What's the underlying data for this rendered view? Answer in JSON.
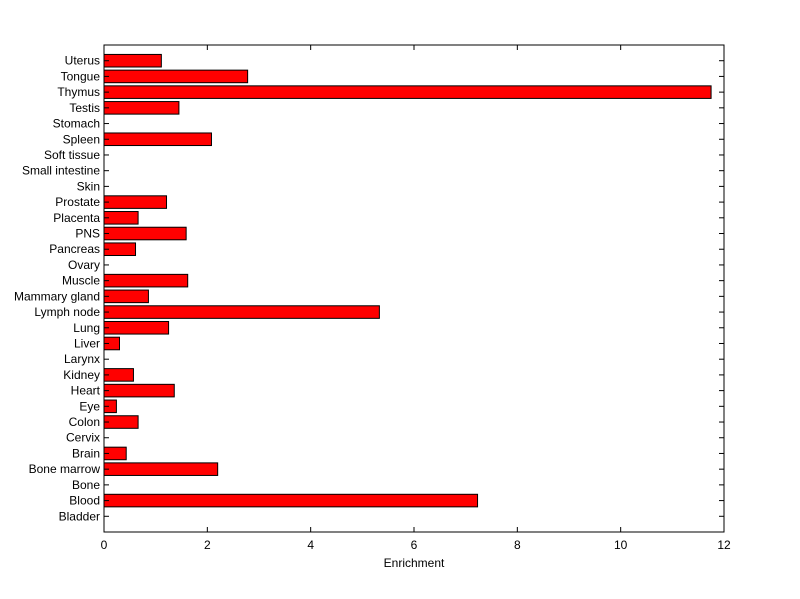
{
  "chart_data": {
    "type": "bar",
    "orientation": "horizontal",
    "categories": [
      "Bladder",
      "Blood",
      "Bone",
      "Bone marrow",
      "Brain",
      "Cervix",
      "Colon",
      "Eye",
      "Heart",
      "Kidney",
      "Larynx",
      "Liver",
      "Lung",
      "Lymph node",
      "Mammary gland",
      "Muscle",
      "Ovary",
      "Pancreas",
      "PNS",
      "Placenta",
      "Prostate",
      "Skin",
      "Small intestine",
      "Soft tissue",
      "Spleen",
      "Stomach",
      "Testis",
      "Thymus",
      "Tongue",
      "Uterus"
    ],
    "values": [
      0,
      7.23,
      0,
      2.2,
      0.43,
      0,
      0.66,
      0.24,
      1.36,
      0.57,
      0,
      0.3,
      1.25,
      5.33,
      0.86,
      1.62,
      0,
      0.61,
      1.59,
      0.66,
      1.21,
      0,
      0,
      0,
      2.08,
      0,
      1.45,
      11.75,
      2.78,
      1.11
    ],
    "xlabel": "Enrichment",
    "xlim": [
      0,
      12
    ],
    "xticks": [
      0,
      2,
      4,
      6,
      8,
      10,
      12
    ],
    "bar_color": "#ff0000",
    "bar_edge_color": "#000000",
    "grid": false
  }
}
